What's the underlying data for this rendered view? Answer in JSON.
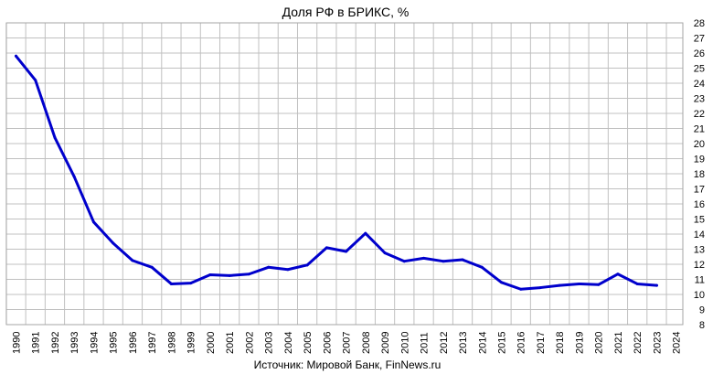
{
  "chart_data": {
    "type": "line",
    "title": "Доля РФ в БРИКС, %",
    "source": "Источник: Мировой Банк, FinNews.ru",
    "xlabel": "",
    "ylabel": "",
    "x": [
      1990,
      1991,
      1992,
      1993,
      1994,
      1995,
      1996,
      1997,
      1998,
      1999,
      2000,
      2001,
      2002,
      2003,
      2004,
      2005,
      2006,
      2007,
      2008,
      2009,
      2010,
      2011,
      2012,
      2013,
      2014,
      2015,
      2016,
      2017,
      2018,
      2019,
      2020,
      2021,
      2022,
      2023
    ],
    "x_ticks": [
      "1990",
      "1991",
      "1992",
      "1993",
      "1994",
      "1995",
      "1996",
      "1997",
      "1998",
      "1999",
      "2000",
      "2001",
      "2002",
      "2003",
      "2004",
      "2005",
      "2006",
      "2007",
      "2008",
      "2009",
      "2010",
      "2011",
      "2012",
      "2013",
      "2014",
      "2015",
      "2016",
      "2017",
      "2018",
      "2019",
      "2020",
      "2021",
      "2022",
      "2023",
      "2024"
    ],
    "xlim": [
      1990,
      2024
    ],
    "ylim": [
      8,
      28
    ],
    "y_ticks": [
      "8",
      "9",
      "10",
      "11",
      "12",
      "13",
      "14",
      "15",
      "16",
      "17",
      "18",
      "19",
      "20",
      "21",
      "22",
      "23",
      "24",
      "25",
      "26",
      "27",
      "28"
    ],
    "series": [
      {
        "values": [
          25.8,
          24.2,
          20.4,
          17.8,
          14.8,
          13.4,
          12.25,
          11.8,
          10.7,
          10.75,
          11.3,
          11.25,
          11.35,
          11.8,
          11.65,
          11.95,
          13.1,
          12.85,
          14.05,
          12.75,
          12.2,
          12.4,
          12.2,
          12.3,
          11.8,
          10.8,
          10.35,
          10.45,
          10.6,
          10.7,
          10.65,
          11.35,
          10.7,
          10.6
        ],
        "color": "#0000cc"
      }
    ],
    "grid": true,
    "legend": "none",
    "gridline_color": "#c0c0c0"
  }
}
